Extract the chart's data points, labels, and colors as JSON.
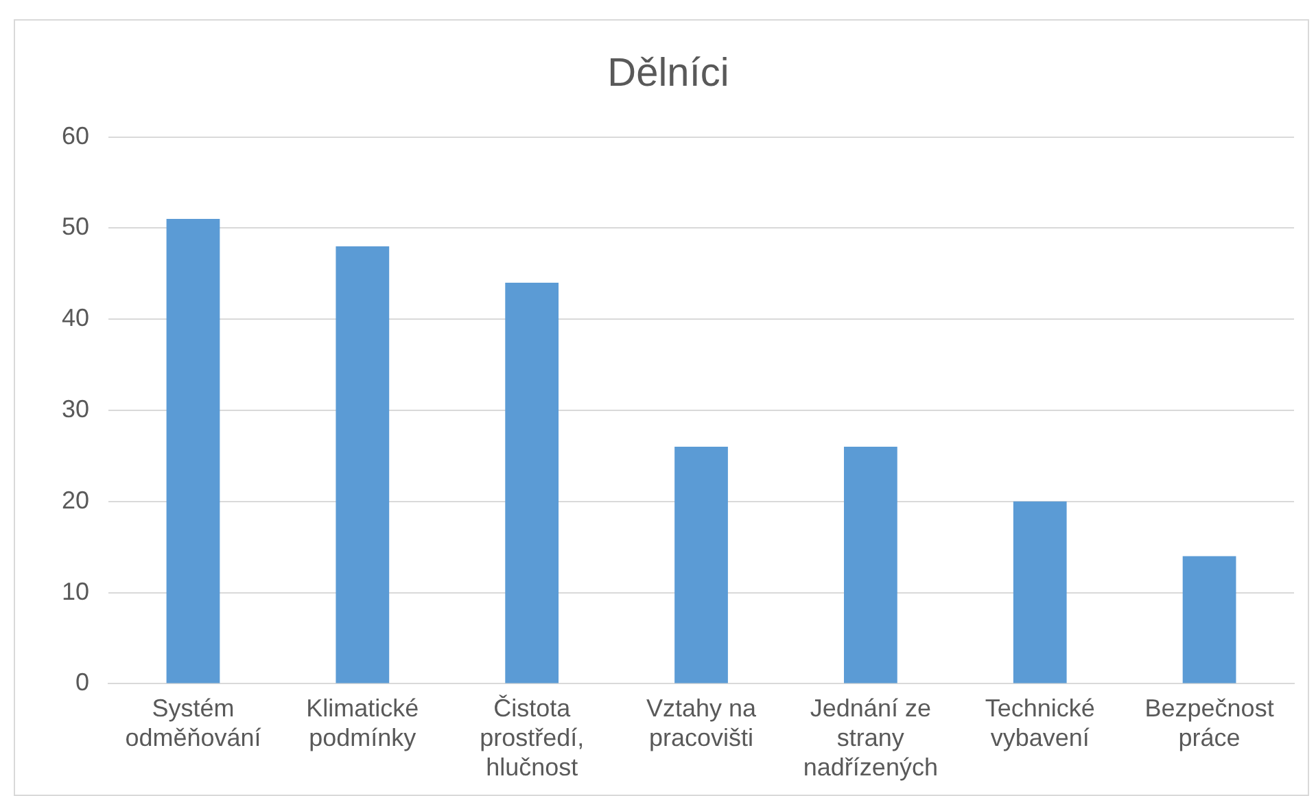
{
  "chart_data": {
    "type": "bar",
    "title": "Dělníci",
    "categories": [
      "Systém odměňování",
      "Klimatické podmínky",
      "Čistota prostředí, hlučnost",
      "Vztahy na pracovišti",
      "Jednání ze strany nadřízených",
      "Technické vybavení",
      "Bezpečnost práce"
    ],
    "values": [
      51,
      48,
      44,
      26,
      26,
      20,
      14
    ],
    "color": "#5b9bd5",
    "ylim": [
      0,
      60
    ],
    "yticks": [
      0,
      10,
      20,
      30,
      40,
      50,
      60
    ],
    "grid": "y",
    "legend": false
  }
}
